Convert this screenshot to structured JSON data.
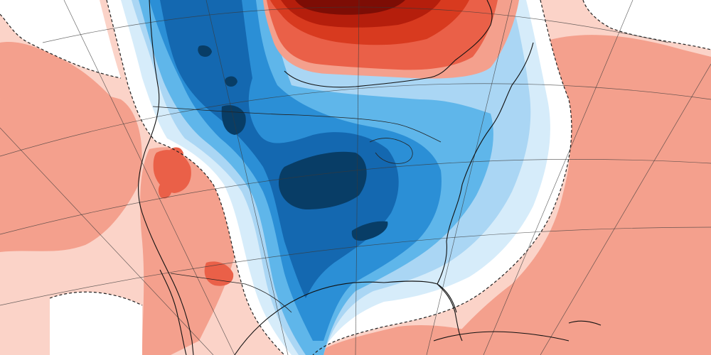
{
  "map": {
    "type": "temperature-anomaly",
    "projection": "polar-stereographic",
    "colors": {
      "warm_1": "#fbd3c8",
      "warm_2": "#f4a08d",
      "warm_3": "#ea6048",
      "warm_4": "#d83a1f",
      "warm_5": "#b51e0c",
      "warm_6": "#7d0d05",
      "neutral": "#ffffff",
      "cool_1": "#d6ecfa",
      "cool_2": "#aad6f4",
      "cool_3": "#5fb6ea",
      "cool_4": "#2b8fd6",
      "cool_5": "#1468b0",
      "cool_6": "#083d66"
    }
  }
}
